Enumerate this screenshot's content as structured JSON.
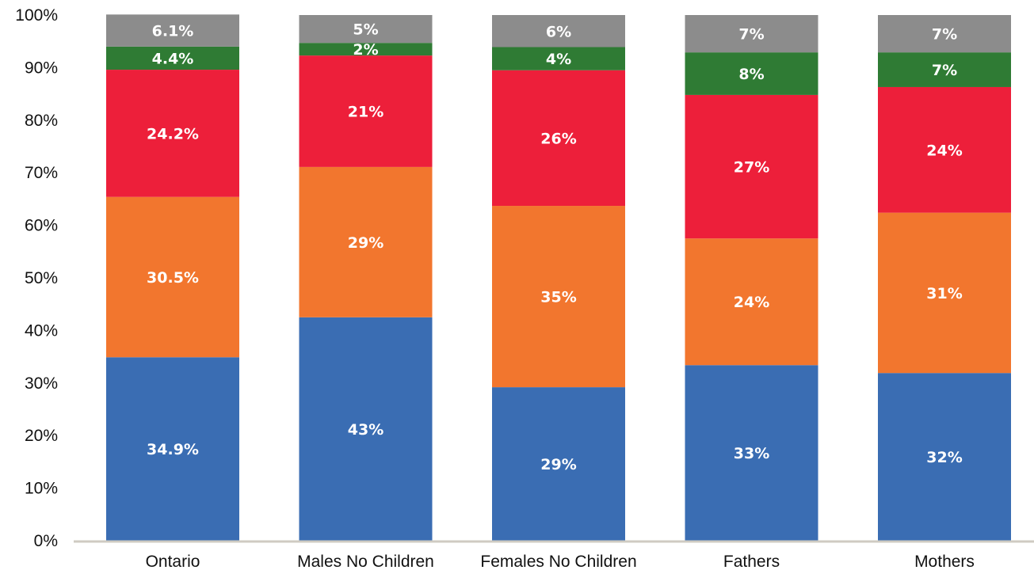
{
  "chart_data": {
    "type": "bar",
    "stacked": true,
    "orientation": "vertical",
    "categories": [
      "Ontario",
      "Males No Children",
      "Females No Children",
      "Fathers",
      "Mothers"
    ],
    "series": [
      {
        "color": "#3a6db3",
        "values": [
          34.9,
          42.5,
          29.2,
          33.4,
          31.9
        ],
        "labels": [
          "34.9%",
          "43%",
          "29%",
          "33%",
          "32%"
        ]
      },
      {
        "color": "#f2762e",
        "values": [
          30.5,
          28.6,
          34.5,
          24.1,
          30.5
        ],
        "labels": [
          "30.5%",
          "29%",
          "35%",
          "24%",
          "31%"
        ]
      },
      {
        "color": "#ed1f3a",
        "values": [
          24.2,
          21.2,
          25.8,
          27.3,
          23.9
        ],
        "labels": [
          "24.2%",
          "21%",
          "26%",
          "27%",
          "24%"
        ]
      },
      {
        "color": "#2f7b34",
        "values": [
          4.4,
          2.4,
          4.4,
          8.1,
          6.6
        ],
        "labels": [
          "4.4%",
          "2%",
          "4%",
          "8%",
          "7%"
        ]
      },
      {
        "color": "#8c8c8c",
        "values": [
          6.1,
          5.3,
          6.1,
          7.1,
          7.1
        ],
        "labels": [
          "6.1%",
          "5%",
          "6%",
          "7%",
          "7%"
        ]
      }
    ],
    "ylim": [
      0,
      100
    ],
    "yticks": [
      "0%",
      "10%",
      "20%",
      "30%",
      "40%",
      "50%",
      "60%",
      "70%",
      "80%",
      "90%",
      "100%"
    ],
    "grid": false,
    "legend": "none",
    "axis_color": "#cfcbc2"
  }
}
